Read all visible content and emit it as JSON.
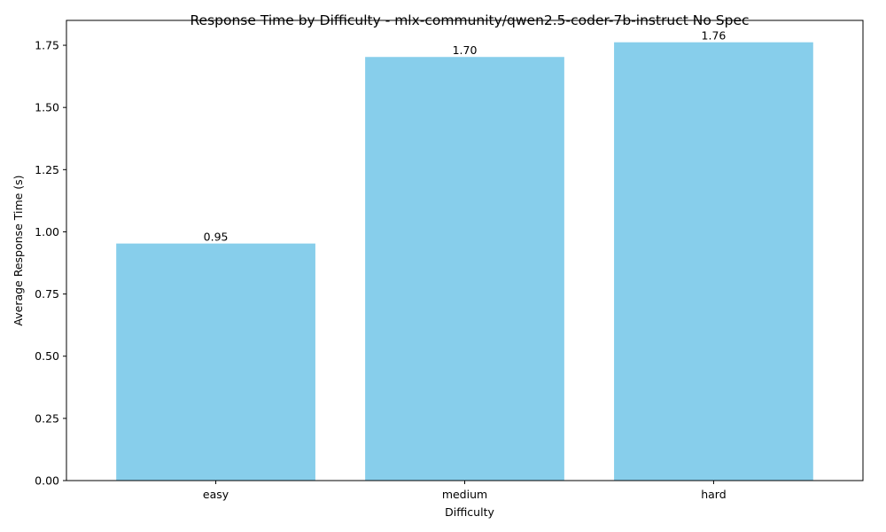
{
  "chart_data": {
    "type": "bar",
    "title": "Response Time by Difficulty - mlx-community/qwen2.5-coder-7b-instruct No Spec",
    "xlabel": "Difficulty",
    "ylabel": "Average Response Time (s)",
    "categories": [
      "easy",
      "medium",
      "hard"
    ],
    "values": [
      0.953,
      1.703,
      1.762
    ],
    "value_labels": [
      "0.95",
      "1.70",
      "1.76"
    ],
    "ylim": [
      0,
      1.85
    ],
    "yticks": [
      0.0,
      0.25,
      0.5,
      0.75,
      1.0,
      1.25,
      1.5,
      1.75
    ],
    "ytick_labels": [
      "0.00",
      "0.25",
      "0.50",
      "0.75",
      "1.00",
      "1.25",
      "1.50",
      "1.75"
    ],
    "bar_color": "#87ceeb",
    "grid": false,
    "legend": "none"
  }
}
